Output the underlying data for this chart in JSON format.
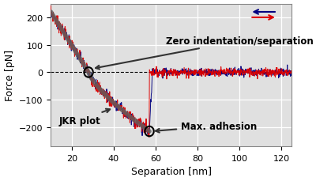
{
  "xlim": [
    10,
    125
  ],
  "ylim": [
    -270,
    250
  ],
  "xlabel": "Separation [nm]",
  "ylabel": "Force [pN]",
  "background_color": "#e0e0e0",
  "grid_color": "white",
  "zero_line_color": "black",
  "zero_line_style": "--",
  "approach_color": "#dd0000",
  "retract_color": "#000080",
  "jkr_color": "#606060",
  "arrow_color": "#333333",
  "zero_point_x": 28,
  "zero_point_y": 0,
  "adhesion_point_x": 57,
  "adhesion_point_y": -215,
  "legend_arrow_left_color": "#000080",
  "legend_arrow_right_color": "#dd0000",
  "annot_fontsize": 8.5,
  "xlabel_color": "black",
  "ylabel_color": "black",
  "tick_fontsize": 8
}
